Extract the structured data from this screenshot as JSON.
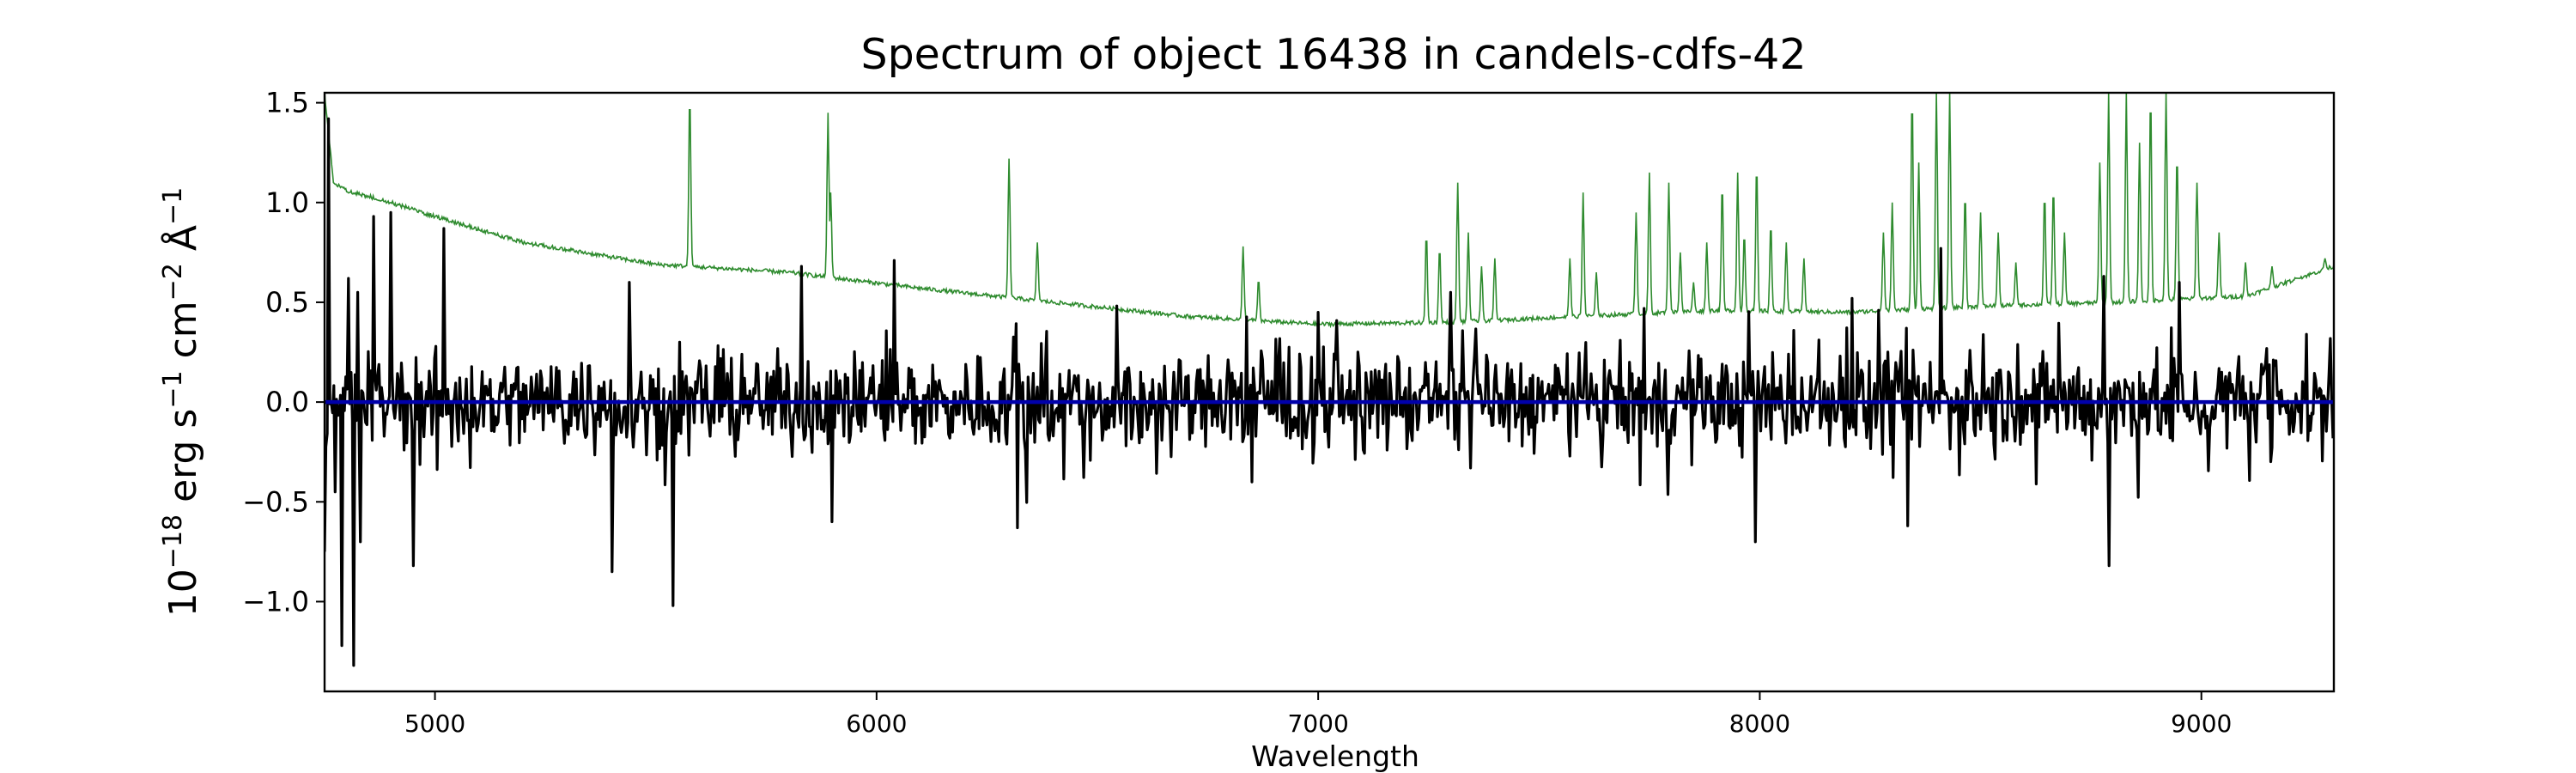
{
  "chart_data": {
    "type": "line",
    "title": "Spectrum of object 16438 in candels-cdfs-42",
    "xlabel": "Wavelength",
    "ylabel_parts": [
      "10",
      "−18",
      " erg s",
      "−1",
      " cm",
      "−2",
      " Å",
      "−1"
    ],
    "xlim": [
      4750,
      9300
    ],
    "ylim": [
      -1.45,
      1.55
    ],
    "x_ticks": [
      5000,
      6000,
      7000,
      8000,
      9000
    ],
    "x_tick_labels": [
      "5000",
      "6000",
      "7000",
      "8000",
      "9000"
    ],
    "y_ticks": [
      -1.0,
      -0.5,
      0.0,
      0.5,
      1.0,
      1.5
    ],
    "y_tick_labels": [
      "−1.0",
      "−0.5",
      "0.0",
      "0.5",
      "1.0",
      "1.5"
    ],
    "grid": false,
    "colors": {
      "flux": "#000000",
      "error": "#2e8b2e",
      "zero": "#0000aa"
    },
    "series": [
      {
        "role": "flux",
        "style": "noisy black line around zero",
        "noise_amplitude": 0.22,
        "key_points": [
          {
            "x": 4750,
            "y": -0.75
          },
          {
            "x": 4760,
            "y": 1.42
          },
          {
            "x": 4775,
            "y": -0.45
          },
          {
            "x": 4790,
            "y": -1.22
          },
          {
            "x": 4805,
            "y": 0.62
          },
          {
            "x": 4815,
            "y": -1.32
          },
          {
            "x": 4830,
            "y": -0.7
          },
          {
            "x": 4860,
            "y": 0.93
          },
          {
            "x": 4900,
            "y": 0.95
          },
          {
            "x": 4950,
            "y": -0.82
          },
          {
            "x": 5020,
            "y": 0.87
          },
          {
            "x": 5050,
            "y": -0.1
          },
          {
            "x": 5400,
            "y": -0.85
          },
          {
            "x": 5440,
            "y": 0.6
          },
          {
            "x": 5540,
            "y": -1.02
          },
          {
            "x": 5555,
            "y": 0.3
          },
          {
            "x": 5830,
            "y": 0.68
          },
          {
            "x": 5900,
            "y": -0.6
          },
          {
            "x": 6040,
            "y": 0.71
          },
          {
            "x": 6320,
            "y": -0.63
          },
          {
            "x": 6850,
            "y": -0.4
          },
          {
            "x": 7000,
            "y": 0.45
          },
          {
            "x": 7300,
            "y": 0.55
          },
          {
            "x": 7990,
            "y": -0.7
          },
          {
            "x": 8210,
            "y": 0.52
          },
          {
            "x": 8270,
            "y": 0.46
          },
          {
            "x": 8335,
            "y": -0.62
          },
          {
            "x": 8410,
            "y": 0.77
          },
          {
            "x": 8790,
            "y": -0.82
          },
          {
            "x": 8780,
            "y": 0.63
          },
          {
            "x": 8950,
            "y": 0.6
          },
          {
            "x": 9300,
            "y": 0.15
          }
        ]
      },
      {
        "role": "error",
        "style": "thin green line, smooth continuum with sky-line spikes",
        "continuum": [
          {
            "x": 4750,
            "y": 1.55
          },
          {
            "x": 4770,
            "y": 1.1
          },
          {
            "x": 4800,
            "y": 1.06
          },
          {
            "x": 4900,
            "y": 1.0
          },
          {
            "x": 5000,
            "y": 0.93
          },
          {
            "x": 5200,
            "y": 0.8
          },
          {
            "x": 5500,
            "y": 0.69
          },
          {
            "x": 5800,
            "y": 0.65
          },
          {
            "x": 6100,
            "y": 0.57
          },
          {
            "x": 6400,
            "y": 0.5
          },
          {
            "x": 6700,
            "y": 0.43
          },
          {
            "x": 7000,
            "y": 0.39
          },
          {
            "x": 7300,
            "y": 0.4
          },
          {
            "x": 7600,
            "y": 0.43
          },
          {
            "x": 7900,
            "y": 0.46
          },
          {
            "x": 8200,
            "y": 0.45
          },
          {
            "x": 8500,
            "y": 0.48
          },
          {
            "x": 8800,
            "y": 0.5
          },
          {
            "x": 9100,
            "y": 0.53
          },
          {
            "x": 9300,
            "y": 0.68
          }
        ],
        "peaks": [
          {
            "x": 5577,
            "y": 1.55
          },
          {
            "x": 5890,
            "y": 1.45
          },
          {
            "x": 5896,
            "y": 1.05
          },
          {
            "x": 6300,
            "y": 1.22
          },
          {
            "x": 6364,
            "y": 0.8
          },
          {
            "x": 6830,
            "y": 0.78
          },
          {
            "x": 6865,
            "y": 0.62
          },
          {
            "x": 7245,
            "y": 0.85
          },
          {
            "x": 7275,
            "y": 0.78
          },
          {
            "x": 7316,
            "y": 1.1
          },
          {
            "x": 7340,
            "y": 0.85
          },
          {
            "x": 7370,
            "y": 0.68
          },
          {
            "x": 7400,
            "y": 0.72
          },
          {
            "x": 7570,
            "y": 0.72
          },
          {
            "x": 7600,
            "y": 1.05
          },
          {
            "x": 7630,
            "y": 0.65
          },
          {
            "x": 7720,
            "y": 0.95
          },
          {
            "x": 7750,
            "y": 1.15
          },
          {
            "x": 7794,
            "y": 1.1
          },
          {
            "x": 7820,
            "y": 0.75
          },
          {
            "x": 7850,
            "y": 0.6
          },
          {
            "x": 7880,
            "y": 0.8
          },
          {
            "x": 7915,
            "y": 1.1
          },
          {
            "x": 7950,
            "y": 1.15
          },
          {
            "x": 7965,
            "y": 0.85
          },
          {
            "x": 7993,
            "y": 1.2
          },
          {
            "x": 8025,
            "y": 0.9
          },
          {
            "x": 8060,
            "y": 0.8
          },
          {
            "x": 8100,
            "y": 0.72
          },
          {
            "x": 8280,
            "y": 0.85
          },
          {
            "x": 8300,
            "y": 1.0
          },
          {
            "x": 8345,
            "y": 1.55
          },
          {
            "x": 8360,
            "y": 1.2
          },
          {
            "x": 8400,
            "y": 1.55
          },
          {
            "x": 8430,
            "y": 1.55
          },
          {
            "x": 8465,
            "y": 1.05
          },
          {
            "x": 8500,
            "y": 0.95
          },
          {
            "x": 8540,
            "y": 0.85
          },
          {
            "x": 8580,
            "y": 0.7
          },
          {
            "x": 8645,
            "y": 1.05
          },
          {
            "x": 8665,
            "y": 1.08
          },
          {
            "x": 8690,
            "y": 0.85
          },
          {
            "x": 8770,
            "y": 1.2
          },
          {
            "x": 8790,
            "y": 1.55
          },
          {
            "x": 8830,
            "y": 1.55
          },
          {
            "x": 8860,
            "y": 1.3
          },
          {
            "x": 8885,
            "y": 1.55
          },
          {
            "x": 8920,
            "y": 1.55
          },
          {
            "x": 8945,
            "y": 1.25
          },
          {
            "x": 8990,
            "y": 1.1
          },
          {
            "x": 9040,
            "y": 0.85
          },
          {
            "x": 9100,
            "y": 0.7
          },
          {
            "x": 9160,
            "y": 0.68
          },
          {
            "x": 9220,
            "y": 0.62
          },
          {
            "x": 9280,
            "y": 0.72
          }
        ]
      },
      {
        "role": "zero",
        "style": "blue horizontal line at y = 0",
        "y": 0.0
      }
    ]
  }
}
